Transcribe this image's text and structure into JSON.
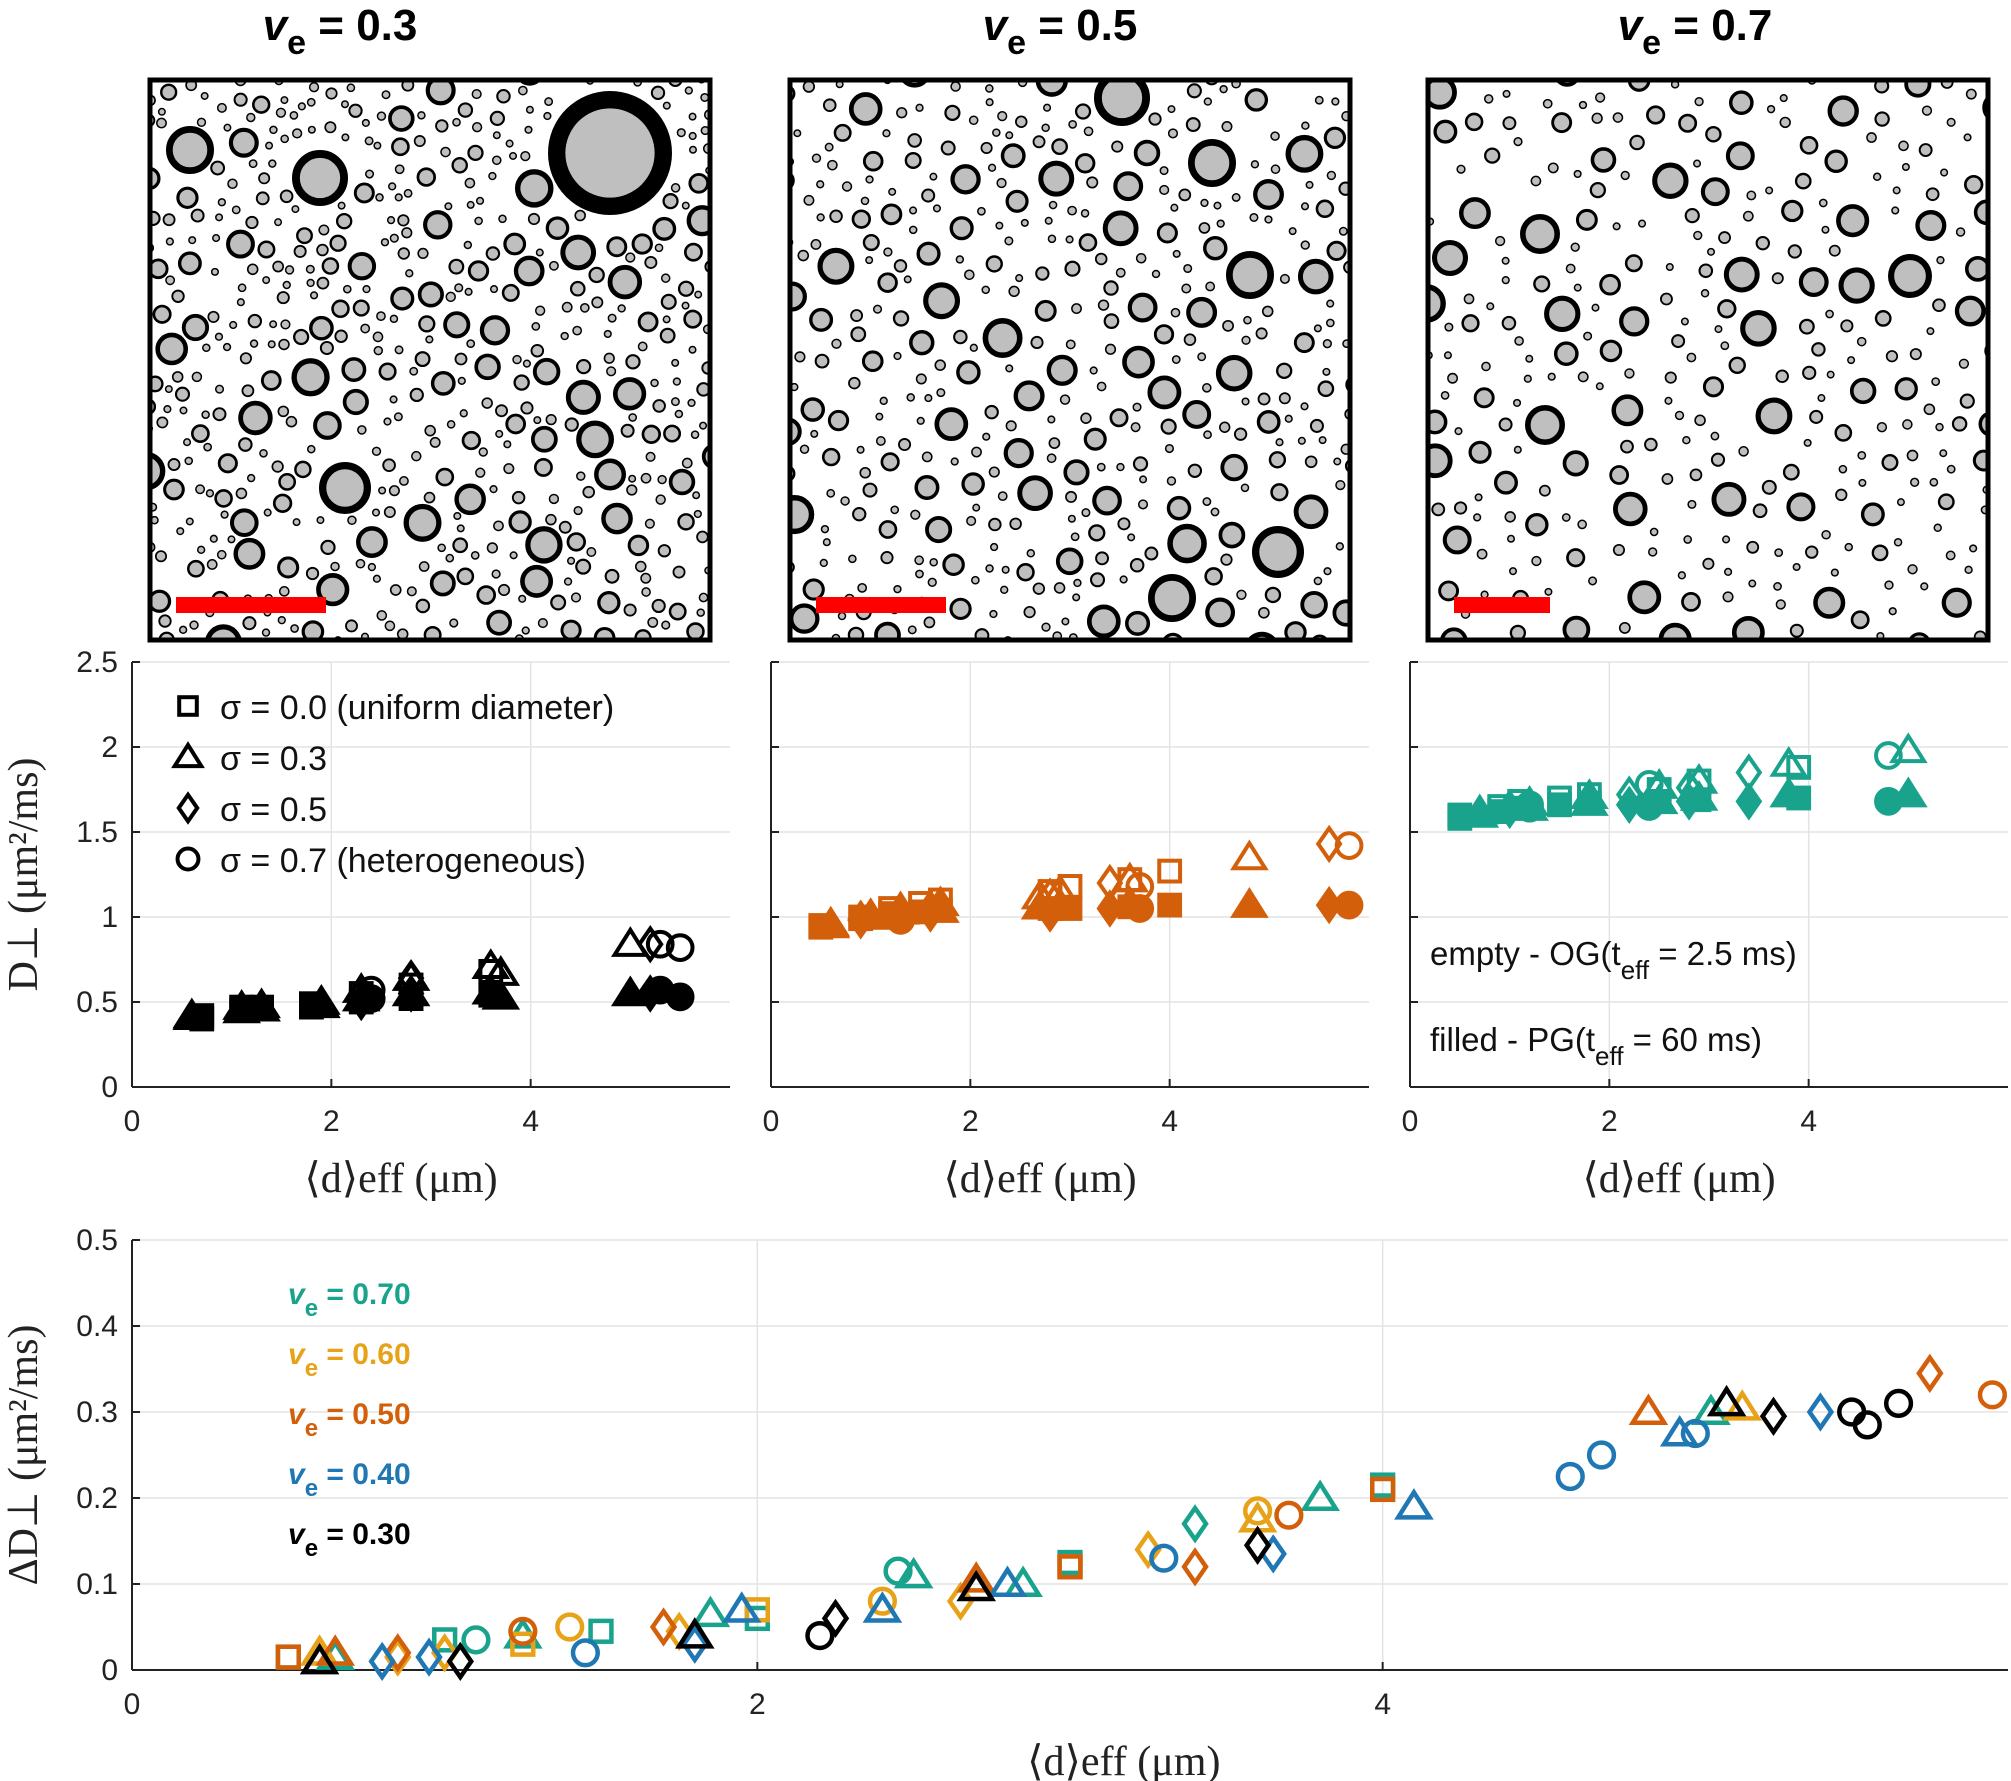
{
  "panel_titles": [
    {
      "v": "v",
      "sub": "e",
      "rest": " = 0.3"
    },
    {
      "v": "v",
      "sub": "e",
      "rest": " = 0.5"
    },
    {
      "v": "v",
      "sub": "e",
      "rest": " = 0.7"
    }
  ],
  "colors": {
    "ve_0.30": "#000000",
    "ve_0.40": "#1f77b4",
    "ve_0.50": "#d35f0a",
    "ve_0.60": "#e8a217",
    "ve_0.70": "#19a38c",
    "disk_fill": "#bfbfbf",
    "scale_bar": "#ff0000"
  },
  "chart_data": [
    {
      "type": "scatter",
      "title": "",
      "xlabel": "⟨d⟩eff (μm)",
      "ylabel": "D⊥ (μm²/ms)",
      "xlim": [
        0,
        6
      ],
      "ylim": [
        0,
        2.5
      ],
      "xticks": [
        "0",
        "2",
        "4"
      ],
      "yticks": [
        "0",
        "0.5",
        "1",
        "1.5",
        "2",
        "2.5"
      ],
      "grid": true,
      "legend": {
        "placement": "top-left",
        "entries": [
          {
            "marker": "square",
            "label": "σ = 0.0 (uniform diameter)"
          },
          {
            "marker": "triangle",
            "label": "σ = 0.3"
          },
          {
            "marker": "diamond",
            "label": "σ = 0.5"
          },
          {
            "marker": "circle",
            "label": "σ = 0.7 (heterogeneous)"
          }
        ]
      },
      "series": [
        {
          "marker": "square",
          "filled": false,
          "x": [
            0.7,
            1.1,
            1.3,
            1.8,
            2.3,
            2.8,
            3.6
          ],
          "y": [
            0.42,
            0.47,
            0.47,
            0.49,
            0.55,
            0.6,
            0.68
          ]
        },
        {
          "marker": "square",
          "filled": true,
          "x": [
            0.7,
            1.1,
            1.3,
            1.8,
            2.3,
            2.8,
            3.6
          ],
          "y": [
            0.4,
            0.45,
            0.46,
            0.47,
            0.5,
            0.52,
            0.54
          ]
        },
        {
          "marker": "triangle",
          "filled": false,
          "x": [
            0.6,
            1.1,
            1.3,
            1.9,
            2.3,
            2.8,
            3.6,
            3.7,
            5.0
          ],
          "y": [
            0.42,
            0.47,
            0.48,
            0.5,
            0.57,
            0.64,
            0.71,
            0.67,
            0.84
          ]
        },
        {
          "marker": "triangle",
          "filled": true,
          "x": [
            0.6,
            1.1,
            1.3,
            1.9,
            2.3,
            2.8,
            3.6,
            3.7,
            5.0
          ],
          "y": [
            0.41,
            0.45,
            0.46,
            0.48,
            0.52,
            0.55,
            0.56,
            0.53,
            0.55
          ]
        },
        {
          "marker": "diamond",
          "filled": false,
          "x": [
            2.3,
            2.8,
            5.2
          ],
          "y": [
            0.55,
            0.64,
            0.84
          ]
        },
        {
          "marker": "diamond",
          "filled": true,
          "x": [
            2.3,
            2.8,
            5.2
          ],
          "y": [
            0.5,
            0.55,
            0.55
          ]
        },
        {
          "marker": "circle",
          "filled": false,
          "x": [
            2.4,
            5.3,
            5.5
          ],
          "y": [
            0.57,
            0.84,
            0.82
          ]
        },
        {
          "marker": "circle",
          "filled": true,
          "x": [
            2.4,
            5.3,
            5.5
          ],
          "y": [
            0.52,
            0.57,
            0.53
          ]
        }
      ],
      "color": "#000000"
    },
    {
      "type": "scatter",
      "title": "",
      "xlabel": "⟨d⟩eff (μm)",
      "ylabel": "",
      "xlim": [
        0,
        6
      ],
      "ylim": [
        0,
        2.5
      ],
      "xticks": [
        "0",
        "2",
        "4"
      ],
      "yticks": [],
      "grid": true,
      "series": [
        {
          "marker": "square",
          "filled": false,
          "x": [
            0.5,
            0.9,
            1.2,
            1.5,
            1.7,
            2.8,
            3.0,
            3.6,
            4.0
          ],
          "y": [
            0.95,
            1.0,
            1.05,
            1.08,
            1.1,
            1.15,
            1.18,
            1.22,
            1.27
          ]
        },
        {
          "marker": "square",
          "filled": true,
          "x": [
            0.5,
            0.9,
            1.2,
            1.5,
            1.7,
            2.8,
            3.0,
            3.6,
            4.0
          ],
          "y": [
            0.94,
            0.99,
            1.02,
            1.03,
            1.04,
            1.05,
            1.05,
            1.06,
            1.07
          ]
        },
        {
          "marker": "triangle",
          "filled": false,
          "x": [
            0.6,
            1.0,
            1.3,
            1.7,
            2.7,
            2.9,
            3.6,
            4.8
          ],
          "y": [
            0.96,
            1.01,
            1.05,
            1.08,
            1.12,
            1.15,
            1.22,
            1.35
          ]
        },
        {
          "marker": "triangle",
          "filled": true,
          "x": [
            0.6,
            1.0,
            1.3,
            1.7,
            2.7,
            2.9,
            3.6,
            4.8
          ],
          "y": [
            0.95,
            1.0,
            1.03,
            1.04,
            1.06,
            1.07,
            1.08,
            1.07
          ]
        },
        {
          "marker": "diamond",
          "filled": false,
          "x": [
            0.9,
            1.6,
            2.8,
            3.4,
            5.6
          ],
          "y": [
            0.99,
            1.05,
            1.12,
            1.2,
            1.43
          ]
        },
        {
          "marker": "diamond",
          "filled": true,
          "x": [
            0.9,
            1.6,
            2.8,
            3.4,
            5.6
          ],
          "y": [
            0.98,
            1.02,
            1.02,
            1.05,
            1.07
          ]
        },
        {
          "marker": "circle",
          "filled": false,
          "x": [
            1.3,
            3.7,
            5.8
          ],
          "y": [
            1.0,
            1.18,
            1.42
          ]
        },
        {
          "marker": "circle",
          "filled": true,
          "x": [
            1.3,
            3.7,
            5.8
          ],
          "y": [
            0.98,
            1.05,
            1.07
          ]
        }
      ],
      "color": "#d35f0a"
    },
    {
      "type": "scatter",
      "title": "",
      "xlabel": "⟨d⟩eff (μm)",
      "ylabel": "",
      "xlim": [
        0,
        6
      ],
      "ylim": [
        0,
        2.5
      ],
      "xticks": [
        "0",
        "2",
        "4"
      ],
      "yticks": [],
      "grid": true,
      "annotations": [
        {
          "text": "empty - OG(t",
          "sub": "eff",
          "rest": " = 2.5 ms)"
        },
        {
          "text": "filled - PG(t",
          "sub": "eff",
          "rest": " = 60 ms)"
        }
      ],
      "series": [
        {
          "marker": "square",
          "filled": false,
          "x": [
            0.5,
            0.9,
            1.1,
            1.5,
            1.8,
            2.5,
            2.9,
            3.9
          ],
          "y": [
            1.6,
            1.65,
            1.68,
            1.7,
            1.72,
            1.75,
            1.8,
            1.88
          ]
        },
        {
          "marker": "square",
          "filled": true,
          "x": [
            0.5,
            0.9,
            1.1,
            1.5,
            1.8,
            2.5,
            2.9,
            3.9
          ],
          "y": [
            1.58,
            1.62,
            1.64,
            1.66,
            1.67,
            1.68,
            1.69,
            1.7
          ]
        },
        {
          "marker": "triangle",
          "filled": false,
          "x": [
            0.7,
            1.2,
            1.8,
            2.5,
            2.9,
            3.8,
            5.0
          ],
          "y": [
            1.62,
            1.67,
            1.71,
            1.77,
            1.8,
            1.9,
            1.98
          ]
        },
        {
          "marker": "triangle",
          "filled": true,
          "x": [
            0.7,
            1.2,
            1.8,
            2.5,
            2.9,
            3.8,
            5.0
          ],
          "y": [
            1.6,
            1.64,
            1.67,
            1.68,
            1.7,
            1.72,
            1.72
          ]
        },
        {
          "marker": "diamond",
          "filled": false,
          "x": [
            1.0,
            2.2,
            2.8,
            3.4
          ],
          "y": [
            1.64,
            1.72,
            1.76,
            1.85
          ]
        },
        {
          "marker": "diamond",
          "filled": true,
          "x": [
            1.0,
            2.2,
            2.8,
            3.4
          ],
          "y": [
            1.63,
            1.66,
            1.68,
            1.68
          ]
        },
        {
          "marker": "circle",
          "filled": false,
          "x": [
            1.2,
            2.4,
            4.8
          ],
          "y": [
            1.66,
            1.78,
            1.95
          ]
        },
        {
          "marker": "circle",
          "filled": true,
          "x": [
            1.2,
            2.4,
            4.8
          ],
          "y": [
            1.64,
            1.65,
            1.68
          ]
        }
      ],
      "color": "#19a38c"
    },
    {
      "type": "scatter",
      "title": "",
      "xlabel": "⟨d⟩eff (μm)",
      "ylabel": "ΔD⊥ (μm²/ms)",
      "xlim": [
        0,
        6
      ],
      "ylim": [
        0,
        0.5
      ],
      "xticks": [
        "0",
        "2",
        "4"
      ],
      "yticks": [
        "0",
        "0.1",
        "0.2",
        "0.3",
        "0.4",
        "0.5"
      ],
      "grid": true,
      "legend": {
        "placement": "top-left",
        "entries": [
          {
            "label": "v",
            "sub": "e",
            "rest": " = 0.70",
            "color": "#19a38c"
          },
          {
            "label": "v",
            "sub": "e",
            "rest": " = 0.60",
            "color": "#e8a217"
          },
          {
            "label": "v",
            "sub": "e",
            "rest": " = 0.50",
            "color": "#d35f0a"
          },
          {
            "label": "v",
            "sub": "e",
            "rest": " = 0.40",
            "color": "#1f77b4"
          },
          {
            "label": "v",
            "sub": "e",
            "rest": " = 0.30",
            "color": "#000000"
          }
        ]
      },
      "series": [
        {
          "name": "ve = 0.70",
          "color": "#19a38c",
          "points": [
            {
              "m": "square",
              "x": 0.5,
              "y": 0.015
            },
            {
              "m": "triangle",
              "x": 0.65,
              "y": 0.015
            },
            {
              "m": "square",
              "x": 1.0,
              "y": 0.035
            },
            {
              "m": "circle",
              "x": 1.1,
              "y": 0.035
            },
            {
              "m": "triangle",
              "x": 1.25,
              "y": 0.04
            },
            {
              "m": "square",
              "x": 1.5,
              "y": 0.045
            },
            {
              "m": "triangle",
              "x": 1.85,
              "y": 0.065
            },
            {
              "m": "square",
              "x": 2.0,
              "y": 0.06
            },
            {
              "m": "circle",
              "x": 2.45,
              "y": 0.115
            },
            {
              "m": "triangle",
              "x": 2.5,
              "y": 0.11
            },
            {
              "m": "triangle",
              "x": 2.85,
              "y": 0.1
            },
            {
              "m": "square",
              "x": 3.0,
              "y": 0.125
            },
            {
              "m": "diamond",
              "x": 3.4,
              "y": 0.17
            },
            {
              "m": "triangle",
              "x": 3.8,
              "y": 0.2
            },
            {
              "m": "square",
              "x": 4.0,
              "y": 0.215
            },
            {
              "m": "triangle",
              "x": 5.05,
              "y": 0.3
            }
          ]
        },
        {
          "name": "ve = 0.60",
          "color": "#e8a217",
          "points": [
            {
              "m": "triangle",
              "x": 0.6,
              "y": 0.02
            },
            {
              "m": "diamond",
              "x": 0.85,
              "y": 0.015
            },
            {
              "m": "diamond",
              "x": 1.0,
              "y": 0.02
            },
            {
              "m": "square",
              "x": 1.25,
              "y": 0.03
            },
            {
              "m": "circle",
              "x": 1.4,
              "y": 0.05
            },
            {
              "m": "diamond",
              "x": 1.75,
              "y": 0.045
            },
            {
              "m": "square",
              "x": 2.0,
              "y": 0.07
            },
            {
              "m": "circle",
              "x": 2.4,
              "y": 0.08
            },
            {
              "m": "diamond",
              "x": 2.65,
              "y": 0.08
            },
            {
              "m": "square",
              "x": 3.0,
              "y": 0.12
            },
            {
              "m": "diamond",
              "x": 3.25,
              "y": 0.14
            },
            {
              "m": "circle",
              "x": 3.6,
              "y": 0.185
            },
            {
              "m": "triangle",
              "x": 3.6,
              "y": 0.175
            },
            {
              "m": "triangle",
              "x": 5.15,
              "y": 0.305
            }
          ]
        },
        {
          "name": "ve = 0.50",
          "color": "#d35f0a",
          "points": [
            {
              "m": "square",
              "x": 0.5,
              "y": 0.015
            },
            {
              "m": "triangle",
              "x": 0.65,
              "y": 0.02
            },
            {
              "m": "diamond",
              "x": 0.85,
              "y": 0.02
            },
            {
              "m": "circle",
              "x": 1.25,
              "y": 0.045
            },
            {
              "m": "diamond",
              "x": 1.7,
              "y": 0.05
            },
            {
              "m": "triangle",
              "x": 2.7,
              "y": 0.105
            },
            {
              "m": "square",
              "x": 3.0,
              "y": 0.12
            },
            {
              "m": "diamond",
              "x": 3.4,
              "y": 0.12
            },
            {
              "m": "circle",
              "x": 3.7,
              "y": 0.18
            },
            {
              "m": "square",
              "x": 4.0,
              "y": 0.21
            },
            {
              "m": "triangle",
              "x": 4.85,
              "y": 0.3
            },
            {
              "m": "diamond",
              "x": 5.75,
              "y": 0.345
            },
            {
              "m": "circle",
              "x": 5.95,
              "y": 0.32
            }
          ]
        },
        {
          "name": "ve = 0.40",
          "color": "#1f77b4",
          "points": [
            {
              "m": "diamond",
              "x": 0.8,
              "y": 0.01
            },
            {
              "m": "diamond",
              "x": 0.95,
              "y": 0.015
            },
            {
              "m": "circle",
              "x": 1.45,
              "y": 0.02
            },
            {
              "m": "diamond",
              "x": 1.8,
              "y": 0.03
            },
            {
              "m": "triangle",
              "x": 1.95,
              "y": 0.07
            },
            {
              "m": "triangle",
              "x": 2.4,
              "y": 0.07
            },
            {
              "m": "triangle",
              "x": 2.8,
              "y": 0.1
            },
            {
              "m": "circle",
              "x": 3.3,
              "y": 0.13
            },
            {
              "m": "diamond",
              "x": 3.65,
              "y": 0.135
            },
            {
              "m": "triangle",
              "x": 4.1,
              "y": 0.19
            },
            {
              "m": "circle",
              "x": 4.6,
              "y": 0.225
            },
            {
              "m": "circle",
              "x": 4.7,
              "y": 0.25
            },
            {
              "m": "triangle",
              "x": 4.95,
              "y": 0.275
            },
            {
              "m": "circle",
              "x": 5.0,
              "y": 0.275
            },
            {
              "m": "diamond",
              "x": 5.4,
              "y": 0.3
            }
          ]
        },
        {
          "name": "ve = 0.30",
          "color": "#000000",
          "points": [
            {
              "m": "triangle",
              "x": 0.6,
              "y": 0.01
            },
            {
              "m": "diamond",
              "x": 1.05,
              "y": 0.01
            },
            {
              "m": "triangle",
              "x": 1.8,
              "y": 0.04
            },
            {
              "m": "circle",
              "x": 2.2,
              "y": 0.04
            },
            {
              "m": "diamond",
              "x": 2.25,
              "y": 0.06
            },
            {
              "m": "triangle",
              "x": 2.7,
              "y": 0.095
            },
            {
              "m": "diamond",
              "x": 3.6,
              "y": 0.145
            },
            {
              "m": "triangle",
              "x": 5.1,
              "y": 0.31
            },
            {
              "m": "diamond",
              "x": 5.25,
              "y": 0.295
            },
            {
              "m": "circle",
              "x": 5.5,
              "y": 0.3
            },
            {
              "m": "circle",
              "x": 5.55,
              "y": 0.285
            },
            {
              "m": "circle",
              "x": 5.65,
              "y": 0.31
            }
          ]
        }
      ]
    }
  ]
}
